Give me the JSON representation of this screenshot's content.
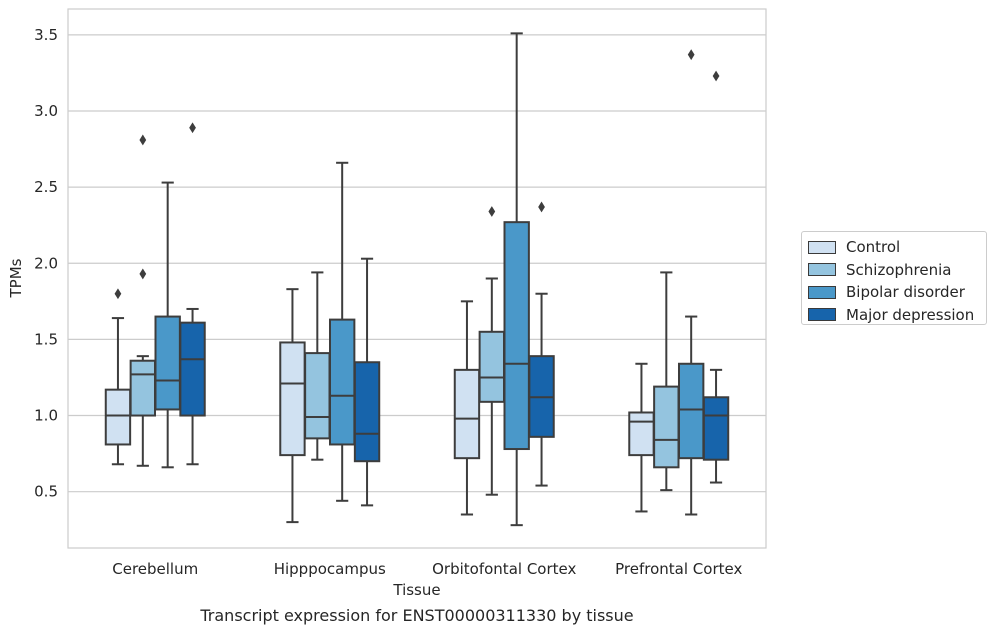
{
  "caption": "Transcript expression for ENST00000311330 by tissue",
  "chart_data": {
    "type": "boxplot",
    "xlabel": "Tissue",
    "ylabel": "TPMs",
    "ylim": [
      0.13,
      3.67
    ],
    "yticks": [
      "0.5",
      "1.0",
      "1.5",
      "2.0",
      "2.5",
      "3.0",
      "3.5"
    ],
    "grid": true,
    "legend_position": "right",
    "categories": [
      "Cerebellum",
      "Hipppocampus",
      "Orbitofontal Cortex",
      "Prefrontal Cortex"
    ],
    "series": [
      {
        "name": "Control",
        "color": "#d0e1f2",
        "boxes": [
          {
            "whislo": 0.68,
            "q1": 0.81,
            "med": 1.0,
            "q3": 1.17,
            "whishi": 1.64,
            "fliers": [
              1.8
            ]
          },
          {
            "whislo": 0.3,
            "q1": 0.74,
            "med": 1.21,
            "q3": 1.48,
            "whishi": 1.83,
            "fliers": []
          },
          {
            "whislo": 0.35,
            "q1": 0.72,
            "med": 0.98,
            "q3": 1.3,
            "whishi": 1.75,
            "fliers": []
          },
          {
            "whislo": 0.37,
            "q1": 0.74,
            "med": 0.96,
            "q3": 1.02,
            "whishi": 1.34,
            "fliers": []
          }
        ]
      },
      {
        "name": "Schizophrenia",
        "color": "#94c4df",
        "boxes": [
          {
            "whislo": 0.67,
            "q1": 1.0,
            "med": 1.27,
            "q3": 1.36,
            "whishi": 1.39,
            "fliers": [
              1.93,
              2.81
            ]
          },
          {
            "whislo": 0.71,
            "q1": 0.85,
            "med": 0.99,
            "q3": 1.41,
            "whishi": 1.94,
            "fliers": []
          },
          {
            "whislo": 0.48,
            "q1": 1.09,
            "med": 1.25,
            "q3": 1.55,
            "whishi": 1.9,
            "fliers": [
              2.34
            ]
          },
          {
            "whislo": 0.51,
            "q1": 0.66,
            "med": 0.84,
            "q3": 1.19,
            "whishi": 1.94,
            "fliers": []
          }
        ]
      },
      {
        "name": "Bipolar disorder",
        "color": "#4a98c9",
        "boxes": [
          {
            "whislo": 0.66,
            "q1": 1.04,
            "med": 1.23,
            "q3": 1.65,
            "whishi": 2.53,
            "fliers": []
          },
          {
            "whislo": 0.44,
            "q1": 0.81,
            "med": 1.13,
            "q3": 1.63,
            "whishi": 2.66,
            "fliers": []
          },
          {
            "whislo": 0.28,
            "q1": 0.78,
            "med": 1.34,
            "q3": 2.27,
            "whishi": 3.51,
            "fliers": []
          },
          {
            "whislo": 0.35,
            "q1": 0.72,
            "med": 1.04,
            "q3": 1.34,
            "whishi": 1.65,
            "fliers": [
              3.37
            ]
          }
        ]
      },
      {
        "name": "Major depression",
        "color": "#1764ab",
        "boxes": [
          {
            "whislo": 0.68,
            "q1": 1.0,
            "med": 1.37,
            "q3": 1.61,
            "whishi": 1.7,
            "fliers": [
              2.89
            ]
          },
          {
            "whislo": 0.41,
            "q1": 0.7,
            "med": 0.88,
            "q3": 1.35,
            "whishi": 2.03,
            "fliers": []
          },
          {
            "whislo": 0.54,
            "q1": 0.86,
            "med": 1.12,
            "q3": 1.39,
            "whishi": 1.8,
            "fliers": [
              2.37
            ]
          },
          {
            "whislo": 0.56,
            "q1": 0.71,
            "med": 1.0,
            "q3": 1.12,
            "whishi": 1.3,
            "fliers": [
              3.23
            ]
          }
        ]
      }
    ]
  }
}
